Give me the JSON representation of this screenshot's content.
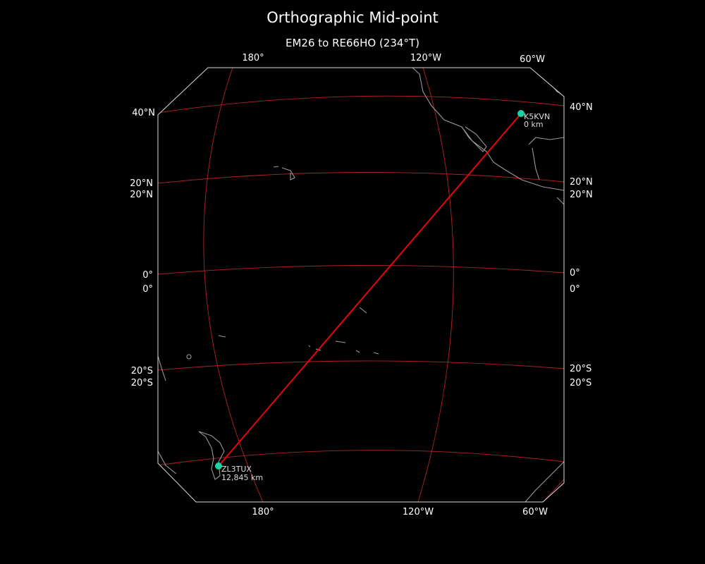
{
  "title": "Orthographic Mid-point",
  "subtitle": "EM26 to RE66HO (234°T)",
  "colors": {
    "background": "#000000",
    "grid": "#b22222",
    "path": "#ff0000",
    "marker": "#1fd1a0",
    "coast": "#999999",
    "frame": "#ffffff"
  },
  "top_lon_labels": [
    "180°",
    "120°W",
    "60°W"
  ],
  "bottom_lon_labels": [
    "180°",
    "120°W",
    "60°W"
  ],
  "left_lat_labels": [
    "40°N",
    "20°N",
    "20°N",
    "0°",
    "0°",
    "20°S",
    "20°S"
  ],
  "right_lat_labels": [
    "40°N",
    "20°N",
    "20°N",
    "0°",
    "0°",
    "20°S",
    "20°S"
  ],
  "markers": [
    {
      "call": "K5KVN",
      "distance": "0 km"
    },
    {
      "call": "ZL3TUX",
      "distance": "12,845 km"
    }
  ]
}
